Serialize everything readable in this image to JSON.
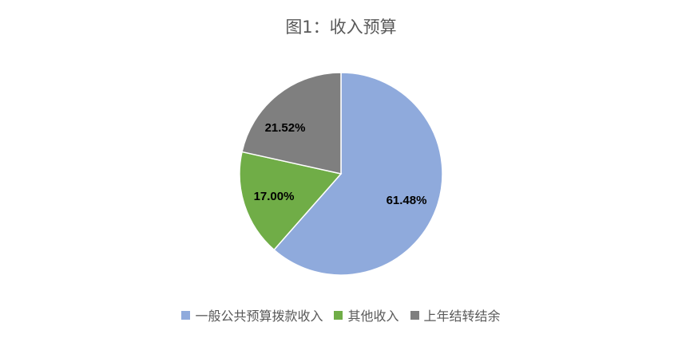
{
  "chart_data": {
    "type": "pie",
    "title": "图1：收入预算",
    "slices": [
      {
        "label": "一般公共预算拨款收入",
        "value": 61.48,
        "value_label": "61.48%",
        "color": "#8FAADC"
      },
      {
        "label": "其他收入",
        "value": 17.0,
        "value_label": "17.00%",
        "color": "#70AD47"
      },
      {
        "label": "上年结转结余",
        "value": 21.52,
        "value_label": "21.52%",
        "color": "#7F7F7F"
      }
    ],
    "legend_position": "bottom"
  }
}
